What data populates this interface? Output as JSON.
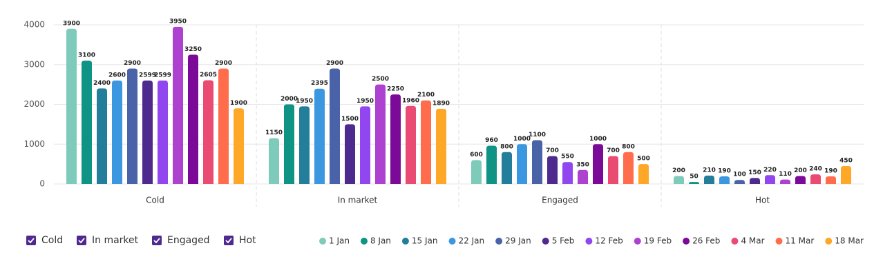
{
  "chart_data": {
    "type": "bar",
    "categories": [
      "Cold",
      "In market",
      "Engaged",
      "Hot"
    ],
    "series": [
      {
        "name": "1 Jan",
        "color": "#7ecbbb",
        "values": [
          3900,
          1150,
          600,
          200
        ]
      },
      {
        "name": "8 Jan",
        "color": "#0e9384",
        "values": [
          3100,
          2000,
          960,
          50
        ]
      },
      {
        "name": "15 Jan",
        "color": "#237e9b",
        "values": [
          2400,
          1950,
          800,
          210
        ]
      },
      {
        "name": "22 Jan",
        "color": "#3b97e0",
        "values": [
          2600,
          2395,
          1000,
          190
        ]
      },
      {
        "name": "29 Jan",
        "color": "#4a63a8",
        "values": [
          2900,
          2900,
          1100,
          100
        ]
      },
      {
        "name": "5 Feb",
        "color": "#4e2a8e",
        "values": [
          2599,
          1500,
          700,
          150
        ]
      },
      {
        "name": "12 Feb",
        "color": "#9146f0",
        "values": [
          2599,
          1950,
          550,
          220
        ]
      },
      {
        "name": "19 Feb",
        "color": "#ac42cf",
        "values": [
          3950,
          2500,
          350,
          110
        ]
      },
      {
        "name": "26 Feb",
        "color": "#7b0a98",
        "values": [
          3250,
          2250,
          1000,
          200
        ]
      },
      {
        "name": "4 Mar",
        "color": "#e94b73",
        "values": [
          2605,
          1960,
          700,
          240
        ]
      },
      {
        "name": "11 Mar",
        "color": "#ff6d4d",
        "values": [
          2900,
          2100,
          800,
          190
        ]
      },
      {
        "name": "18 Mar",
        "color": "#ffa726",
        "values": [
          1900,
          1890,
          500,
          450
        ]
      }
    ],
    "ylim": [
      0,
      4000
    ],
    "yticks": [
      0,
      1000,
      2000,
      3000,
      4000
    ],
    "grid": true
  }
}
